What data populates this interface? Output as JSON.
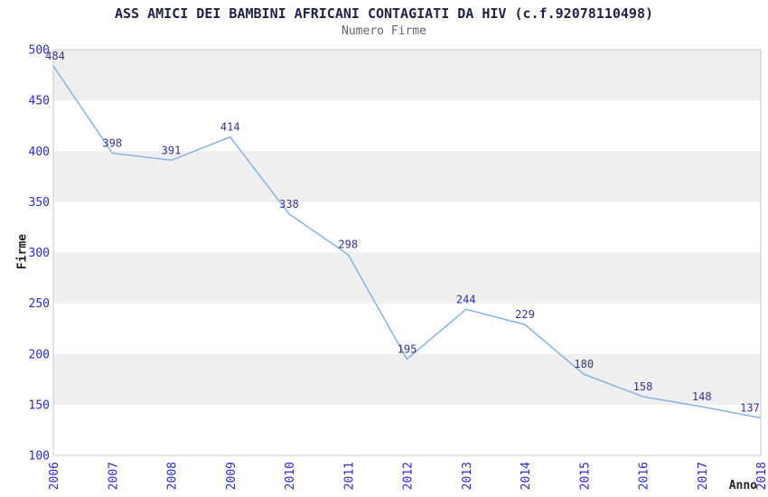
{
  "chart_data": {
    "type": "line",
    "title": "ASS AMICI DEI BAMBINI AFRICANI CONTAGIATI DA HIV (c.f.92078110498)",
    "subtitle": "Numero Firme",
    "xlabel": "Anno",
    "ylabel": "Firme",
    "categories": [
      "2006",
      "2007",
      "2008",
      "2009",
      "2010",
      "2011",
      "2012",
      "2013",
      "2014",
      "2015",
      "2016",
      "2017",
      "2018"
    ],
    "values": [
      484,
      398,
      391,
      414,
      338,
      298,
      195,
      244,
      229,
      180,
      158,
      148,
      137
    ],
    "ylim": [
      100,
      500
    ],
    "ytick_step": 50,
    "grid": "alternating-horizontal-bands",
    "legend_position": "none",
    "data_labels_visible": true,
    "colors": {
      "line": "#7fb0e2",
      "tick_label": "#2a2ad8",
      "value_label": "#333392",
      "band_gray": "#efefef",
      "plot_border": "#c8c8c8",
      "title": "#222244",
      "subtitle": "#666666",
      "axis_title": "#222222",
      "background": "#ffffff"
    }
  }
}
